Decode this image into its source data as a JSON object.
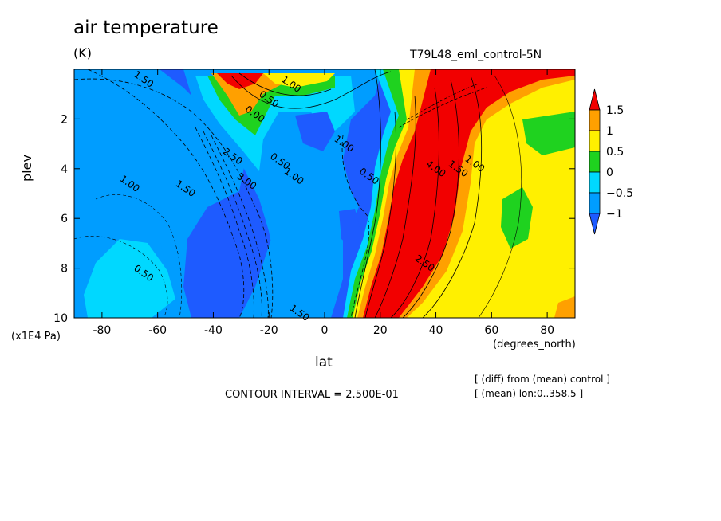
{
  "chart_data": {
    "type": "heatmap",
    "title": "air temperature",
    "units": "(K)",
    "run_label": "T79L48_eml_control-5N",
    "xlabel": "lat",
    "x_unit_label": "(degrees_north)",
    "ylabel": "plev",
    "y_unit_label": "(x1E4 Pa)",
    "xlim": [
      -90,
      90
    ],
    "ylim": [
      10,
      0
    ],
    "x_ticks": [
      -80,
      -60,
      -40,
      -20,
      0,
      20,
      40,
      60,
      80
    ],
    "y_ticks": [
      2,
      4,
      6,
      8,
      10
    ],
    "contour_interval_text": "CONTOUR INTERVAL = 2.500E-01",
    "notes": [
      "[ (diff) from (mean) control ]",
      "[ (mean) lon:0..358.5 ]"
    ],
    "colorbar": {
      "labels": [
        "1.5",
        "1",
        "0.5",
        "0",
        "−0.5",
        "−1"
      ],
      "bins": [
        {
          "min": 1.5,
          "color": "#f20000"
        },
        {
          "min": 1.0,
          "max": 1.5,
          "color": "#ffa000"
        },
        {
          "min": 0.5,
          "max": 1.0,
          "color": "#fff000"
        },
        {
          "min": 0.0,
          "max": 0.5,
          "color": "#1fd21f"
        },
        {
          "min": -0.5,
          "max": 0.0,
          "color": "#00d8ff"
        },
        {
          "min": -1.0,
          "max": -0.5,
          "color": "#009dff"
        },
        {
          "max": -1.0,
          "color": "#1e5bff"
        }
      ]
    },
    "contour_labels": [
      {
        "text": "1.50",
        "lat": -65,
        "plev": 0.4
      },
      {
        "text": "1.00",
        "lat": -12,
        "plev": 0.6
      },
      {
        "text": "0.50",
        "lat": -20,
        "plev": 1.2
      },
      {
        "text": "0.00",
        "lat": -25,
        "plev": 1.8
      },
      {
        "text": "1.00",
        "lat": 7,
        "plev": 3.0
      },
      {
        "text": "2.50",
        "lat": -33,
        "plev": 3.5
      },
      {
        "text": "0.50",
        "lat": -16,
        "plev": 3.7
      },
      {
        "text": "3.00",
        "lat": -28,
        "plev": 4.5
      },
      {
        "text": "1.00",
        "lat": -11,
        "plev": 4.3
      },
      {
        "text": "1.50",
        "lat": -50,
        "plev": 4.8
      },
      {
        "text": "1.00",
        "lat": -70,
        "plev": 4.6
      },
      {
        "text": "0.50",
        "lat": -65,
        "plev": 8.2
      },
      {
        "text": "1.50",
        "lat": -9,
        "plev": 9.8
      },
      {
        "text": "0.50",
        "lat": 16,
        "plev": 4.3
      },
      {
        "text": "1.00",
        "lat": 54,
        "plev": 3.8
      },
      {
        "text": "1.50",
        "lat": 48,
        "plev": 4.0
      },
      {
        "text": "4.00",
        "lat": 40,
        "plev": 4.0
      },
      {
        "text": "2.50",
        "lat": 36,
        "plev": 7.8
      }
    ]
  }
}
